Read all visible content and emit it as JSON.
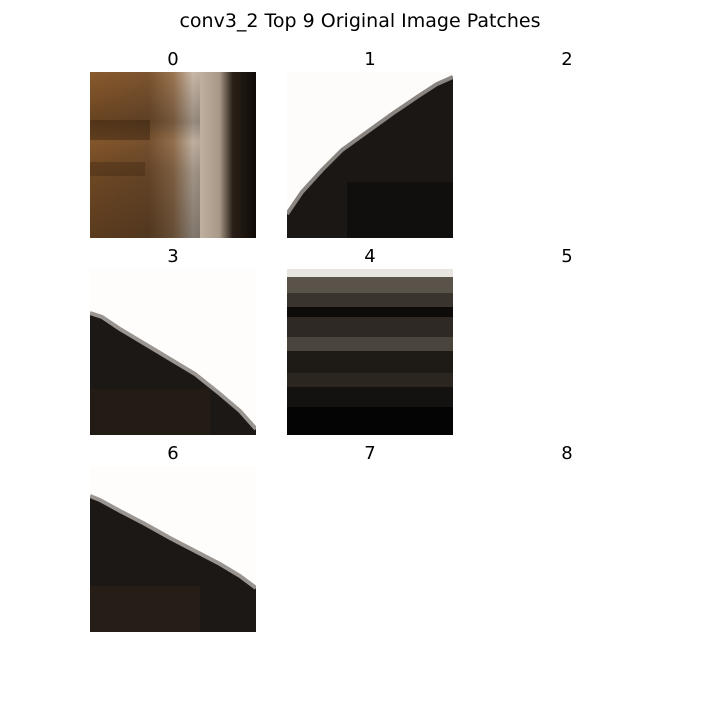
{
  "title": "conv3_2 Top 9 Original Image Patches",
  "panels": [
    {
      "label": "0",
      "kind": "face-edge"
    },
    {
      "label": "1",
      "kind": "dark-curve-upper-right"
    },
    {
      "label": "2",
      "kind": "blank"
    },
    {
      "label": "3",
      "kind": "dark-curve-lower-left"
    },
    {
      "label": "4",
      "kind": "dark-texture"
    },
    {
      "label": "5",
      "kind": "blank"
    },
    {
      "label": "6",
      "kind": "dark-curve-lower-left"
    },
    {
      "label": "7",
      "kind": "blank"
    },
    {
      "label": "8",
      "kind": "blank"
    }
  ]
}
